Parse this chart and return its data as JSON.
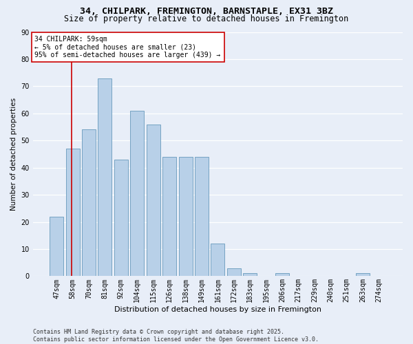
{
  "title1": "34, CHILPARK, FREMINGTON, BARNSTAPLE, EX31 3BZ",
  "title2": "Size of property relative to detached houses in Fremington",
  "xlabel": "Distribution of detached houses by size in Fremington",
  "ylabel": "Number of detached properties",
  "categories": [
    "47sqm",
    "58sqm",
    "70sqm",
    "81sqm",
    "92sqm",
    "104sqm",
    "115sqm",
    "126sqm",
    "138sqm",
    "149sqm",
    "161sqm",
    "172sqm",
    "183sqm",
    "195sqm",
    "206sqm",
    "217sqm",
    "229sqm",
    "240sqm",
    "251sqm",
    "263sqm",
    "274sqm"
  ],
  "values": [
    22,
    47,
    54,
    73,
    43,
    61,
    56,
    44,
    44,
    44,
    12,
    3,
    1,
    0,
    1,
    0,
    0,
    0,
    0,
    1,
    0
  ],
  "bar_color": "#b8d0e8",
  "bar_edge_color": "#6699bb",
  "background_color": "#e8eef8",
  "grid_color": "#ffffff",
  "vline_x_idx": 1,
  "annotation_text": "34 CHILPARK: 59sqm\n← 5% of detached houses are smaller (23)\n95% of semi-detached houses are larger (439) →",
  "annotation_box_color": "#ffffff",
  "annotation_box_edge": "#cc0000",
  "vline_color": "#cc0000",
  "ylim": [
    0,
    90
  ],
  "yticks": [
    0,
    10,
    20,
    30,
    40,
    50,
    60,
    70,
    80,
    90
  ],
  "footer": "Contains HM Land Registry data © Crown copyright and database right 2025.\nContains public sector information licensed under the Open Government Licence v3.0.",
  "title1_fontsize": 9.5,
  "title2_fontsize": 8.5,
  "xlabel_fontsize": 8,
  "ylabel_fontsize": 7.5,
  "tick_fontsize": 7,
  "footer_fontsize": 6,
  "annotation_fontsize": 7
}
